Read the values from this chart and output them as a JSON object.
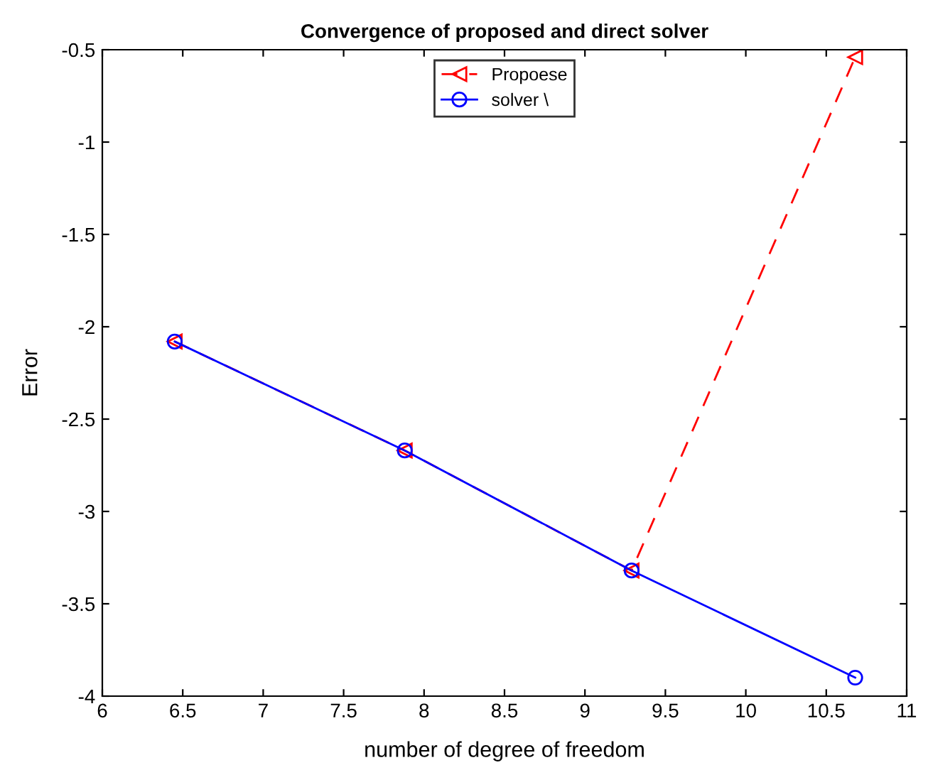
{
  "chart_data": {
    "type": "line",
    "title": "Convergence of proposed and direct solver",
    "xlabel": "number of degree of freedom",
    "ylabel": "Error",
    "x": [
      6.45,
      7.88,
      9.29,
      10.68
    ],
    "series": [
      {
        "name": "Propoese",
        "color": "#ff0000",
        "values": [
          -2.08,
          -2.67,
          -3.32,
          -0.54
        ],
        "marker": "triangle",
        "line_style": "dashed"
      },
      {
        "name": "solver \\",
        "color": "#0000ff",
        "values": [
          -2.08,
          -2.67,
          -3.32,
          -3.9
        ],
        "marker": "circle",
        "line_style": "solid"
      }
    ],
    "xlim": [
      6,
      11
    ],
    "xticks": [
      6,
      6.5,
      7,
      7.5,
      8,
      8.5,
      9,
      9.5,
      10,
      10.5,
      11
    ],
    "ylim": [
      -4,
      -0.5
    ],
    "yticks": [
      -4,
      -3.5,
      -3,
      -2.5,
      -2,
      -1.5,
      -1,
      -0.5
    ],
    "grid": false,
    "legend": "top"
  }
}
